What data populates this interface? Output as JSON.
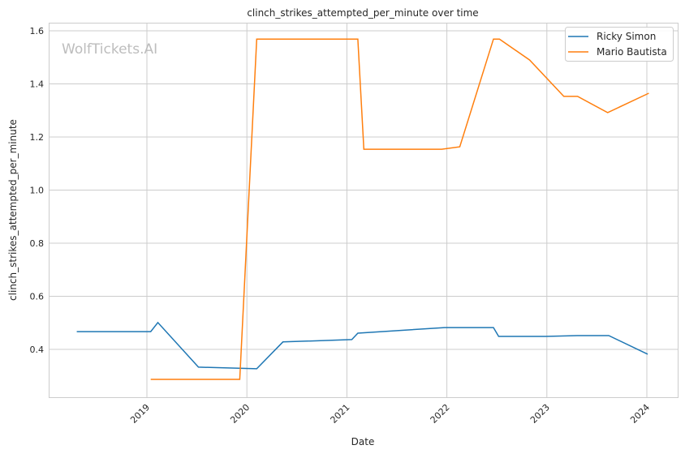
{
  "chart_data": {
    "type": "line",
    "title": "clinch_strikes_attempted_per_minute over time",
    "xlabel": "Date",
    "ylabel": "clinch_strikes_attempted_per_minute",
    "watermark": "WolfTickets.AI",
    "x_ticks": [
      "2019",
      "2020",
      "2021",
      "2022",
      "2023",
      "2024"
    ],
    "y_ticks": [
      "0.4",
      "0.6",
      "0.8",
      "1.0",
      "1.2",
      "1.4",
      "1.6"
    ],
    "ylim": [
      0.22,
      1.63
    ],
    "xlim": [
      "2018-03-01",
      "2024-04-01"
    ],
    "grid": true,
    "legend_position": "top-right",
    "series": [
      {
        "name": "Ricky Simon",
        "color": "#1f77b4",
        "x": [
          "2018-04-20",
          "2019-01-15",
          "2019-02-10",
          "2019-07-08",
          "2020-02-06",
          "2020-05-12",
          "2021-01-19",
          "2021-02-10",
          "2021-12-24",
          "2022-06-20",
          "2022-07-09",
          "2022-12-28",
          "2023-04-23",
          "2023-08-15",
          "2024-01-04"
        ],
        "y": [
          0.467,
          0.467,
          0.501,
          0.333,
          0.327,
          0.428,
          0.437,
          0.461,
          0.482,
          0.482,
          0.449,
          0.449,
          0.452,
          0.452,
          0.382
        ]
      },
      {
        "name": "Mario Bautista",
        "color": "#ff7f0e",
        "x": [
          "2019-01-15",
          "2019-12-06",
          "2020-02-06",
          "2021-02-10",
          "2021-03-04",
          "2021-12-13",
          "2022-02-17",
          "2022-06-20",
          "2022-07-12",
          "2022-10-30",
          "2023-03-04",
          "2023-04-23",
          "2023-08-11",
          "2024-01-08"
        ],
        "y": [
          0.287,
          0.287,
          1.569,
          1.569,
          1.154,
          1.154,
          1.163,
          1.569,
          1.569,
          1.49,
          1.353,
          1.353,
          1.292,
          1.365
        ]
      }
    ]
  }
}
